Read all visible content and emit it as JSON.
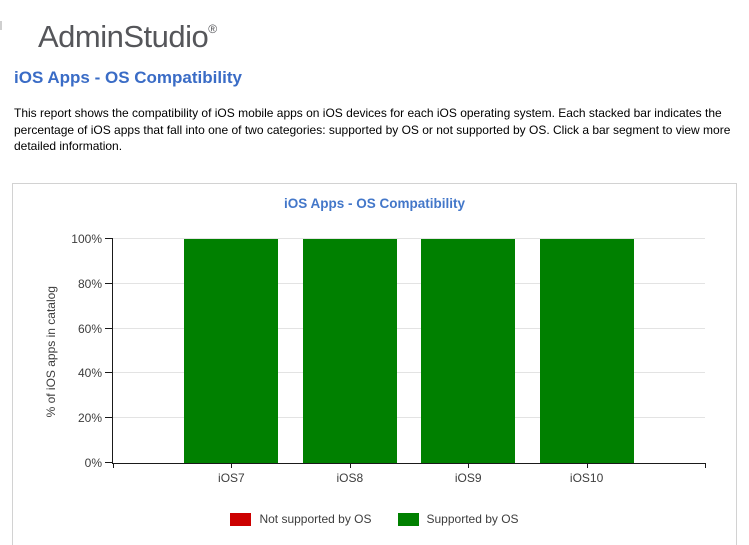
{
  "logo": {
    "text": "AdminStudio",
    "registered_mark": "®"
  },
  "page": {
    "title": "iOS Apps - OS Compatibility",
    "description": "This report shows the compatibility of iOS mobile apps on iOS devices for each iOS operating system. Each stacked bar indicates the percentage of iOS apps that fall into one of two categories: supported by OS or not supported by OS. Click a bar segment to view more detailed information."
  },
  "colors": {
    "page_title_blue": "#3a6cc6",
    "chart_title_blue": "#4377c9",
    "logo_gray": "#55565a",
    "supported_green": "#008000",
    "not_supported_red": "#cc0000",
    "panel_border": "#d2d2d2",
    "gridline": "#e3e3e3"
  },
  "chart_data": {
    "type": "bar",
    "stacked": true,
    "title": "iOS Apps - OS Compatibility",
    "categories": [
      "iOS7",
      "iOS8",
      "iOS9",
      "iOS10"
    ],
    "series": [
      {
        "name": "Not supported by OS",
        "color": "#cc0000",
        "values": [
          0,
          0,
          0,
          0
        ]
      },
      {
        "name": "Supported by OS",
        "color": "#008000",
        "values": [
          100,
          100,
          100,
          100
        ]
      }
    ],
    "xlabel": "",
    "ylabel": "% of iOS apps in catalog",
    "ylim": [
      0,
      100
    ],
    "yticks": [
      "0%",
      "20%",
      "40%",
      "60%",
      "80%",
      "100%"
    ],
    "grid": true,
    "legend_position": "bottom"
  }
}
